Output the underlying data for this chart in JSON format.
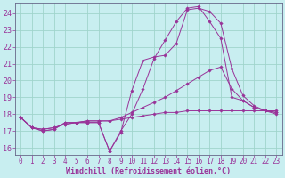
{
  "background_color": "#c8eef0",
  "grid_color": "#a0d4cc",
  "line_color": "#993399",
  "xlabel": "Windchill (Refroidissement éolien,°C)",
  "xlabel_fontsize": 6.0,
  "ytick_fontsize": 6.0,
  "xtick_fontsize": 5.5,
  "ylim": [
    15.6,
    24.6
  ],
  "xlim": [
    -0.5,
    23.5
  ],
  "yticks": [
    16,
    17,
    18,
    19,
    20,
    21,
    22,
    23,
    24
  ],
  "xticks": [
    0,
    1,
    2,
    3,
    4,
    5,
    6,
    7,
    8,
    9,
    10,
    11,
    12,
    13,
    14,
    15,
    16,
    17,
    18,
    19,
    20,
    21,
    22,
    23
  ],
  "series": [
    {
      "x": [
        0,
        1,
        2,
        3,
        4,
        5,
        6,
        7,
        8,
        9,
        10,
        11,
        12,
        13,
        14,
        15,
        16,
        17,
        18,
        19,
        20,
        21,
        22,
        23
      ],
      "y": [
        17.8,
        17.2,
        17.0,
        17.1,
        17.5,
        17.5,
        17.5,
        17.5,
        15.8,
        16.9,
        19.4,
        21.2,
        21.4,
        21.5,
        22.2,
        24.2,
        24.3,
        24.1,
        23.4,
        20.7,
        19.1,
        18.5,
        18.2,
        18.2
      ]
    },
    {
      "x": [
        0,
        1,
        2,
        3,
        4,
        5,
        6,
        7,
        8,
        9,
        10,
        11,
        12,
        13,
        14,
        15,
        16,
        17,
        18,
        19,
        20,
        21,
        22,
        23
      ],
      "y": [
        17.8,
        17.2,
        17.0,
        17.1,
        17.5,
        17.5,
        17.5,
        17.5,
        15.8,
        17.0,
        18.0,
        19.5,
        21.3,
        22.4,
        23.5,
        24.3,
        24.4,
        23.5,
        22.5,
        19.0,
        18.8,
        18.4,
        18.2,
        18.1
      ]
    },
    {
      "x": [
        0,
        1,
        2,
        3,
        4,
        5,
        6,
        7,
        8,
        9,
        10,
        11,
        12,
        13,
        14,
        15,
        16,
        17,
        18,
        19,
        20,
        21,
        22,
        23
      ],
      "y": [
        17.8,
        17.2,
        17.1,
        17.2,
        17.4,
        17.5,
        17.6,
        17.6,
        17.6,
        17.8,
        18.1,
        18.4,
        18.7,
        19.0,
        19.4,
        19.8,
        20.2,
        20.6,
        20.8,
        19.5,
        18.8,
        18.4,
        18.2,
        18.0
      ]
    },
    {
      "x": [
        0,
        1,
        2,
        3,
        4,
        5,
        6,
        7,
        8,
        9,
        10,
        11,
        12,
        13,
        14,
        15,
        16,
        17,
        18,
        19,
        20,
        21,
        22,
        23
      ],
      "y": [
        17.8,
        17.2,
        17.1,
        17.2,
        17.4,
        17.5,
        17.6,
        17.6,
        17.6,
        17.7,
        17.8,
        17.9,
        18.0,
        18.1,
        18.1,
        18.2,
        18.2,
        18.2,
        18.2,
        18.2,
        18.2,
        18.2,
        18.2,
        18.1
      ]
    }
  ]
}
